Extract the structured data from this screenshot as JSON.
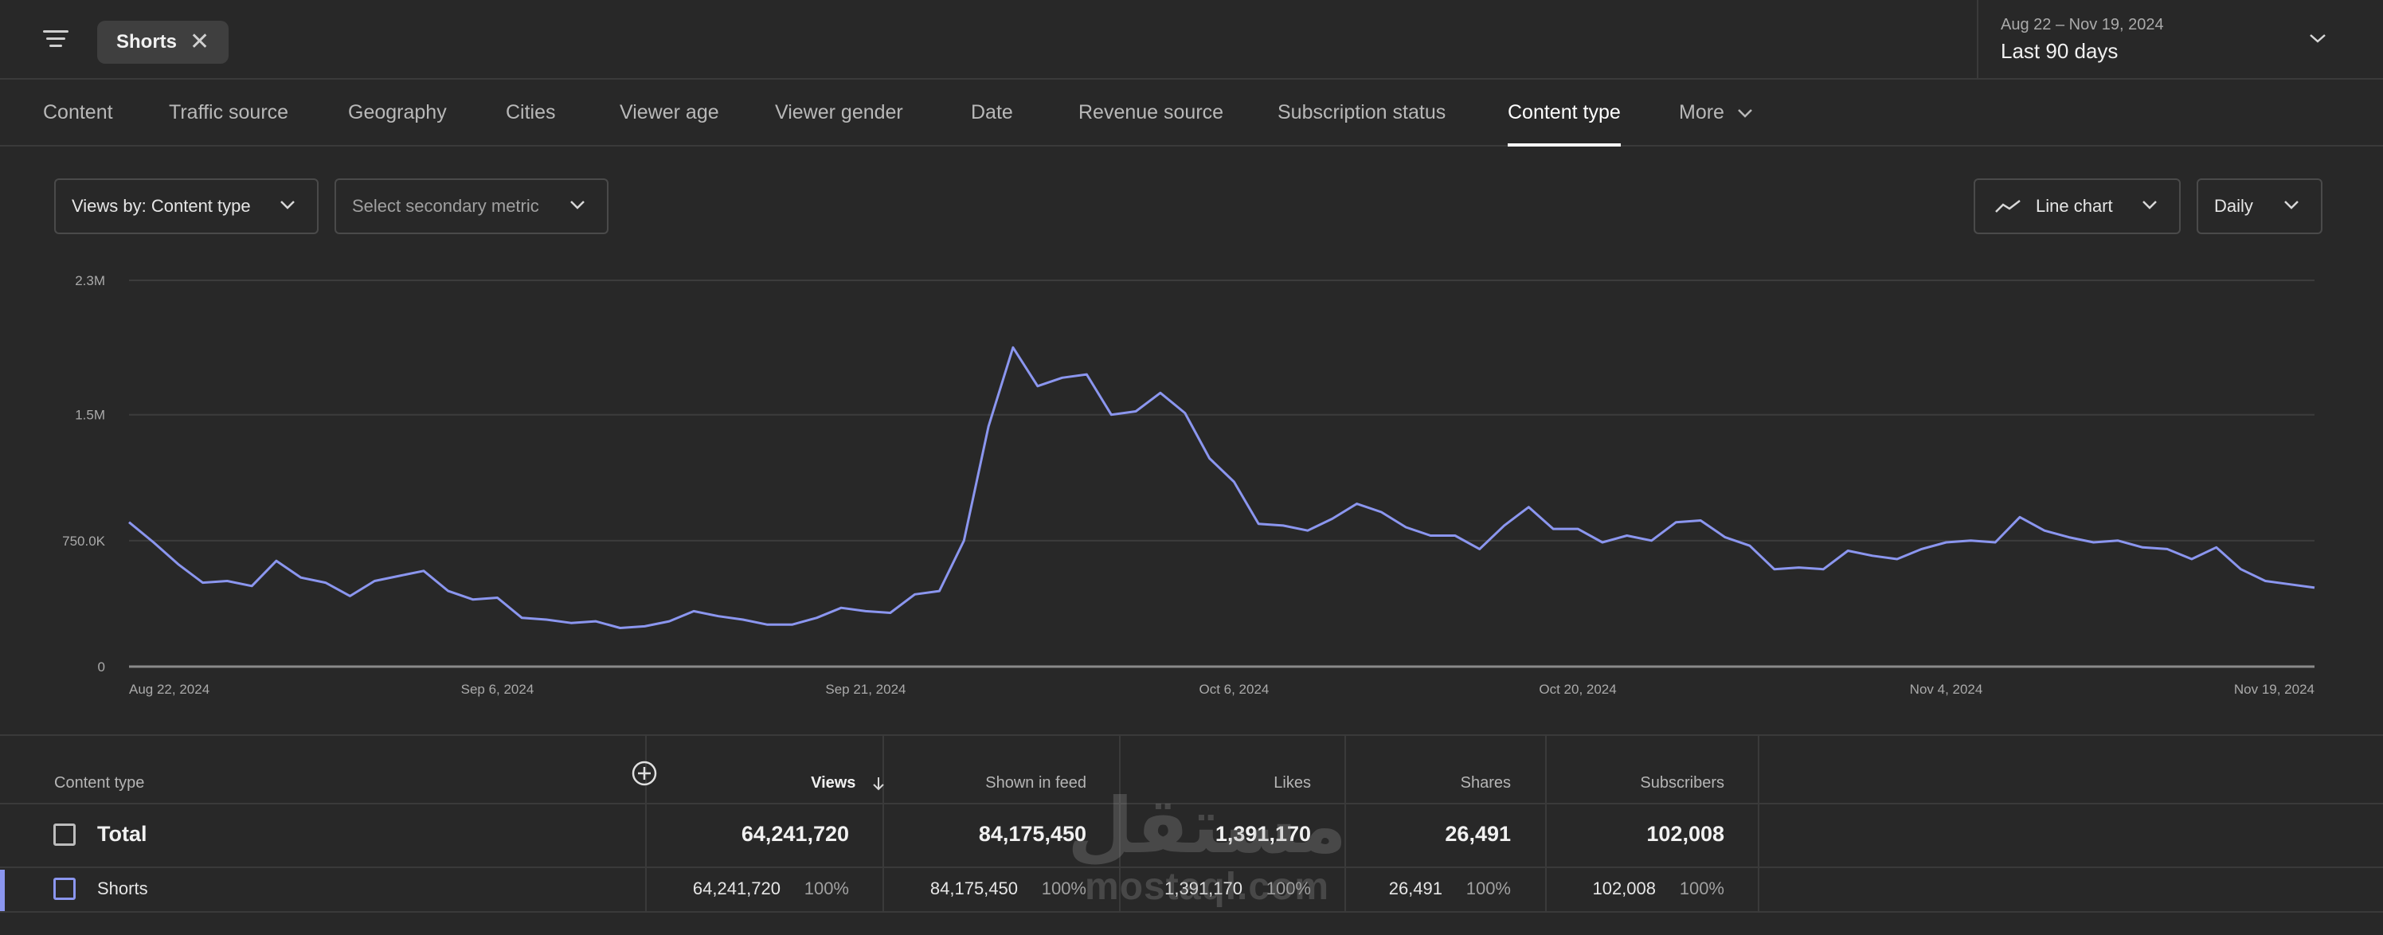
{
  "header": {
    "filter_chip": "Shorts",
    "date_range": {
      "subtitle": "Aug 22 – Nov 19, 2024",
      "title": "Last 90 days"
    }
  },
  "tabs": [
    {
      "label": "Content"
    },
    {
      "label": "Traffic source"
    },
    {
      "label": "Geography"
    },
    {
      "label": "Cities"
    },
    {
      "label": "Viewer age"
    },
    {
      "label": "Viewer gender"
    },
    {
      "label": "Date"
    },
    {
      "label": "Revenue source"
    },
    {
      "label": "Subscription status"
    },
    {
      "label": "Content type",
      "active": true
    },
    {
      "label": "More"
    }
  ],
  "controls": {
    "metric": "Views by: Content type",
    "secondary": "Select secondary metric",
    "chart_type": "Line chart",
    "interval": "Daily"
  },
  "chart_data": {
    "type": "line",
    "title": "",
    "xlabel": "",
    "ylabel": "",
    "ylim": [
      0,
      2300000
    ],
    "ytick_values": [
      0,
      750000,
      1500000,
      2300000
    ],
    "ytick_labels": [
      "0",
      "750.0K",
      "1.5M",
      "2.3M"
    ],
    "xtick_labels": [
      "Aug 22, 2024",
      "Sep 6, 2024",
      "Sep 21, 2024",
      "Oct 6, 2024",
      "Oct 20, 2024",
      "Nov 4, 2024",
      "Nov 19, 2024"
    ],
    "xtick_index": [
      0,
      15,
      30,
      45,
      59,
      74,
      89
    ],
    "grid": true,
    "color": "#8b96ef",
    "series": [
      {
        "values": [
          860000,
          740000,
          610000,
          500000,
          510000,
          480000,
          630000,
          530000,
          500000,
          420000,
          510000,
          540000,
          570000,
          450000,
          400000,
          410000,
          290000,
          280000,
          260000,
          270000,
          230000,
          240000,
          270000,
          330000,
          300000,
          280000,
          250000,
          250000,
          290000,
          350000,
          330000,
          320000,
          430000,
          450000,
          750000,
          1430000,
          1900000,
          1670000,
          1720000,
          1740000,
          1500000,
          1520000,
          1630000,
          1510000,
          1240000,
          1100000,
          850000,
          840000,
          810000,
          880000,
          970000,
          920000,
          830000,
          780000,
          780000,
          700000,
          840000,
          950000,
          820000,
          820000,
          740000,
          780000,
          750000,
          860000,
          870000,
          770000,
          720000,
          580000,
          590000,
          580000,
          690000,
          660000,
          640000,
          700000,
          740000,
          750000,
          740000,
          890000,
          810000,
          770000,
          740000,
          750000,
          710000,
          700000,
          640000,
          710000,
          580000,
          510000,
          490000,
          470000
        ]
      }
    ]
  },
  "table": {
    "columns": [
      "Content type",
      "Views",
      "Shown in feed",
      "Likes",
      "Shares",
      "Subscribers"
    ],
    "total": {
      "label": "Total",
      "views": "64,241,720",
      "shown_in_feed": "84,175,450",
      "likes": "1,391,170",
      "shares": "26,491",
      "subscribers": "102,008"
    },
    "rows": [
      {
        "label": "Shorts",
        "views": "64,241,720",
        "views_pct": "100%",
        "shown_in_feed": "84,175,450",
        "shown_in_feed_pct": "100%",
        "likes": "1,391,170",
        "likes_pct": "100%",
        "shares": "26,491",
        "shares_pct": "100%",
        "subscribers": "102,008",
        "subscribers_pct": "100%"
      }
    ]
  },
  "watermark": {
    "arabic": "مستقل",
    "latin": "mostaql.com"
  }
}
